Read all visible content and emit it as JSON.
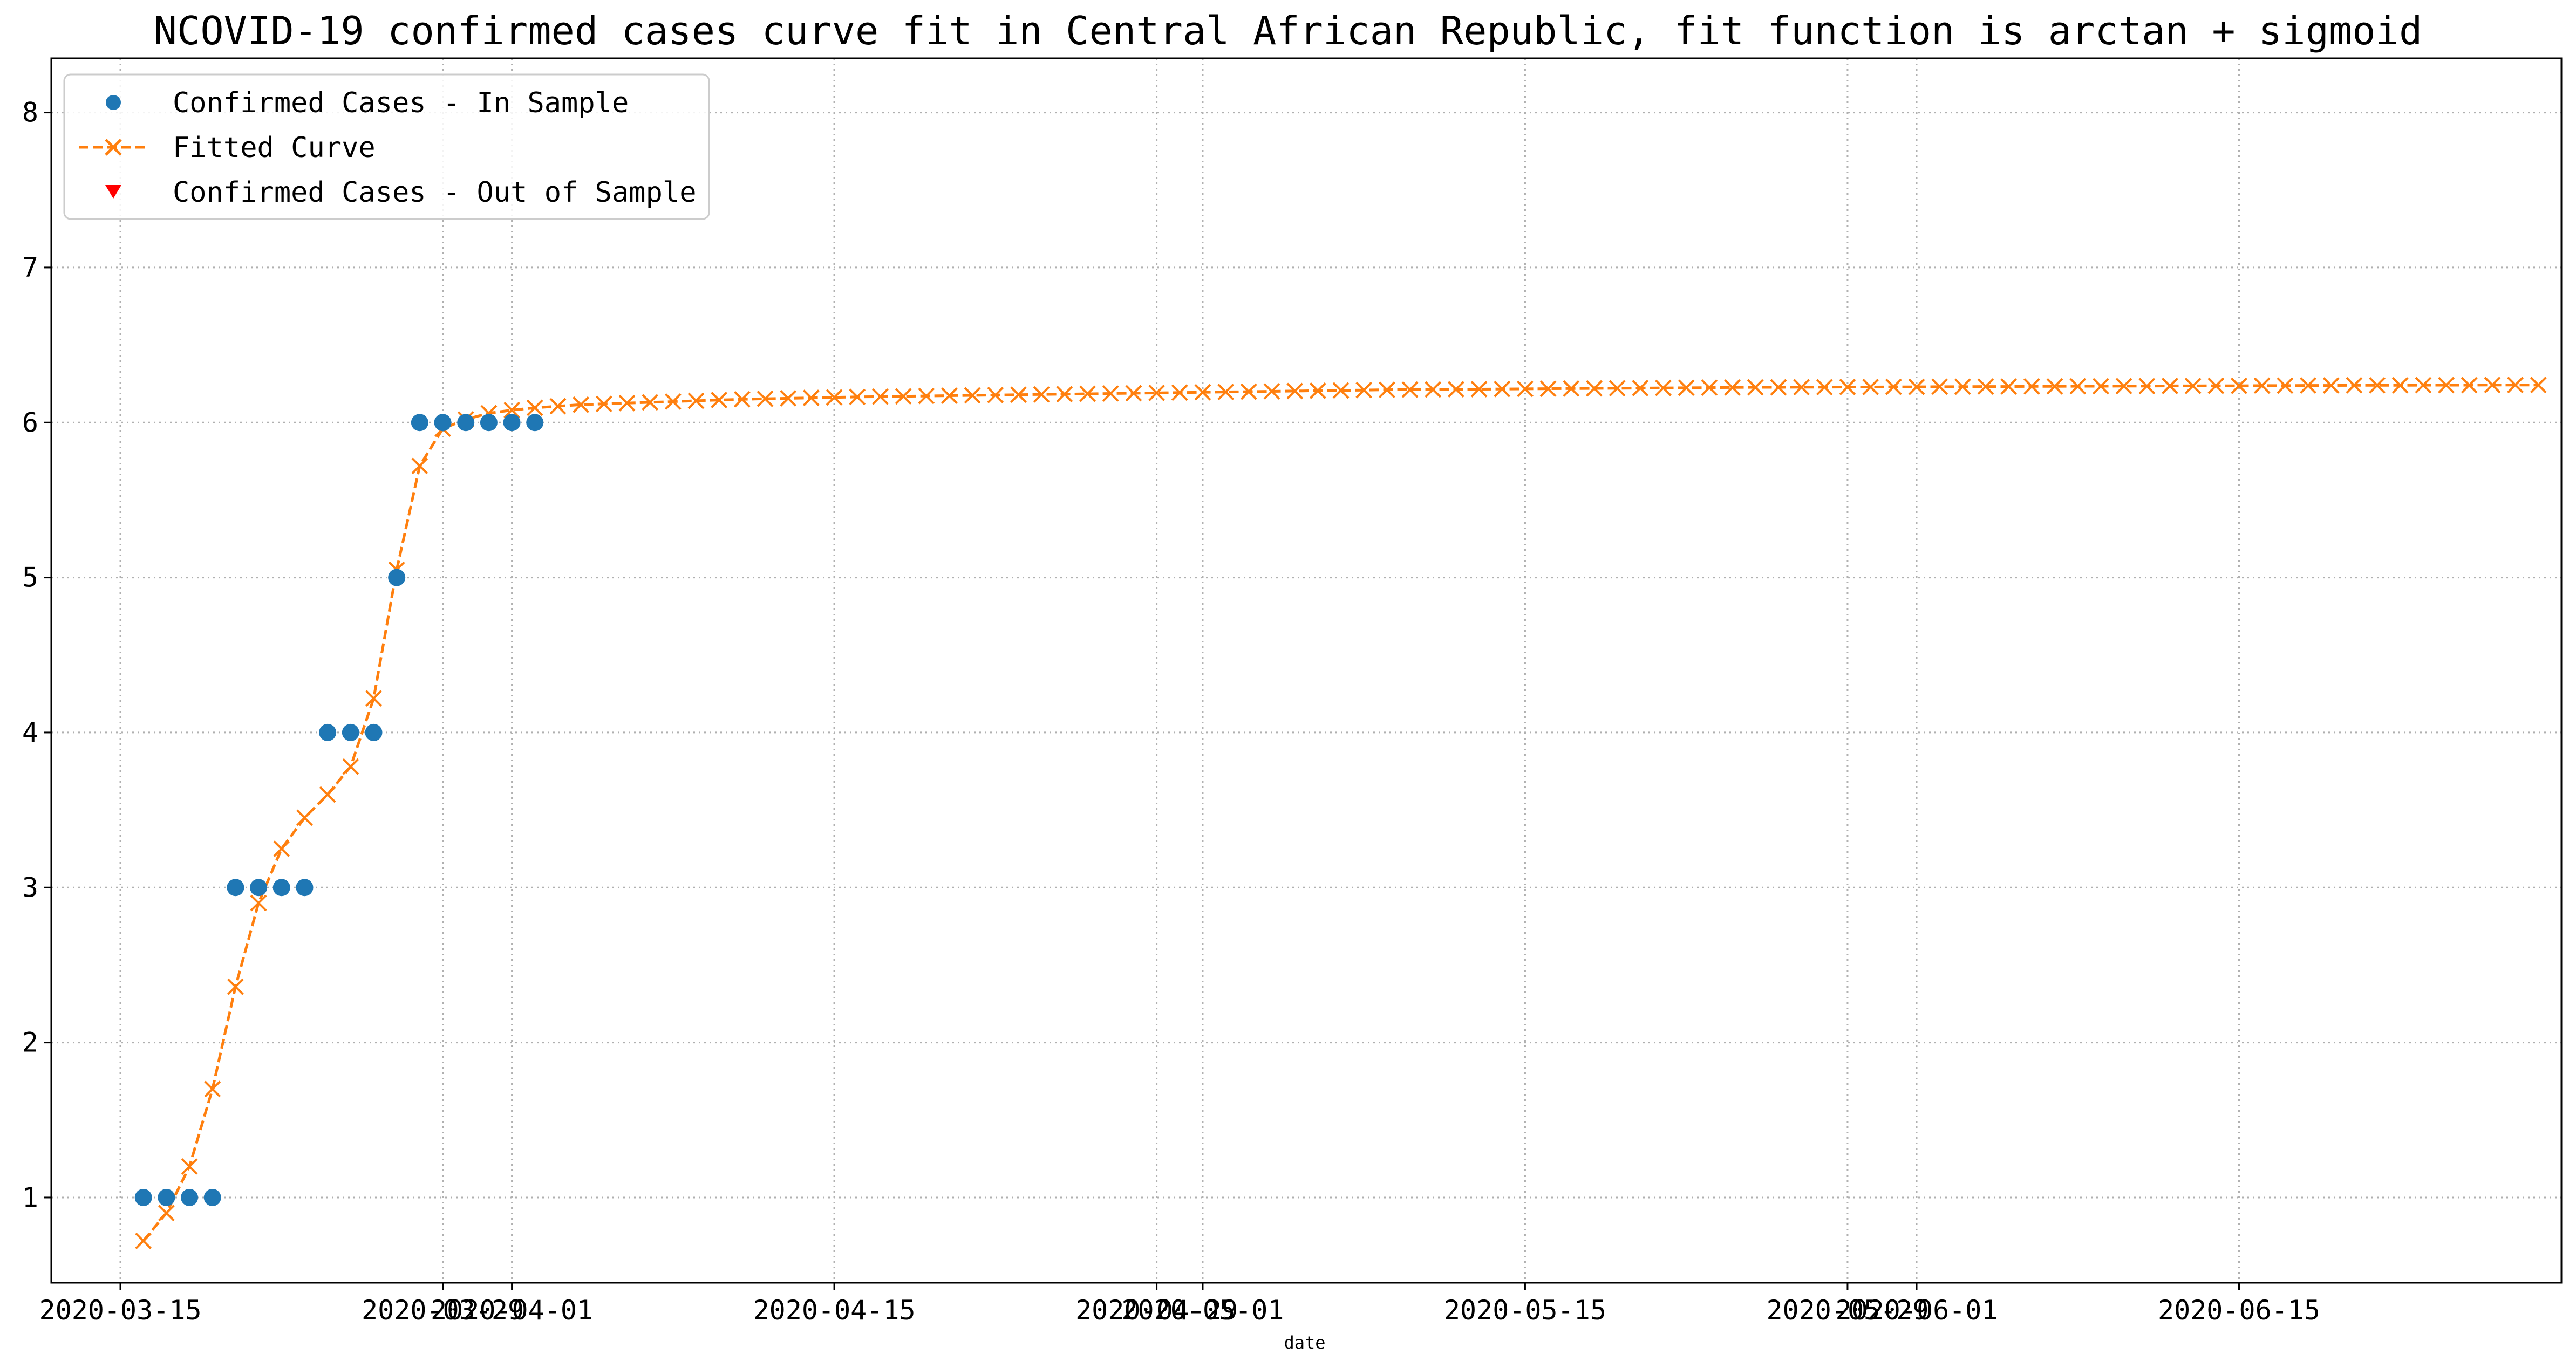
{
  "chart_data": {
    "type": "line",
    "title": "NCOVID-19 confirmed cases curve fit in Central African Republic, fit function is arctan + sigmoid",
    "xlabel": "date",
    "ylabel": "",
    "x_type": "date",
    "xlim": [
      "2020-03-12",
      "2020-06-29"
    ],
    "ylim": [
      0.45,
      8.35
    ],
    "grid": true,
    "legend_position": "top-left",
    "y_ticks": [
      1,
      2,
      3,
      4,
      5,
      6,
      7,
      8
    ],
    "x_ticks": [
      {
        "date": "2020-03-15",
        "label": "2020-03-15"
      },
      {
        "date": "2020-03-29",
        "label": "2020-03-29"
      },
      {
        "date": "2020-04-01",
        "label": "2020-04-01"
      },
      {
        "date": "2020-04-15",
        "label": "2020-04-15"
      },
      {
        "date": "2020-04-29",
        "label": "2020-04-29"
      },
      {
        "date": "2020-05-01",
        "label": "2020-05-01"
      },
      {
        "date": "2020-05-15",
        "label": "2020-05-15"
      },
      {
        "date": "2020-05-29",
        "label": "2020-05-29"
      },
      {
        "date": "2020-06-01",
        "label": "2020-06-01"
      },
      {
        "date": "2020-06-15",
        "label": "2020-06-15"
      }
    ],
    "series": [
      {
        "name": "Confirmed Cases - In Sample",
        "kind": "scatter",
        "marker": "circle",
        "color": "#1f77b4",
        "points": [
          {
            "x": "2020-03-16",
            "y": 1
          },
          {
            "x": "2020-03-17",
            "y": 1
          },
          {
            "x": "2020-03-18",
            "y": 1
          },
          {
            "x": "2020-03-19",
            "y": 1
          },
          {
            "x": "2020-03-20",
            "y": 3
          },
          {
            "x": "2020-03-21",
            "y": 3
          },
          {
            "x": "2020-03-22",
            "y": 3
          },
          {
            "x": "2020-03-23",
            "y": 3
          },
          {
            "x": "2020-03-24",
            "y": 4
          },
          {
            "x": "2020-03-25",
            "y": 4
          },
          {
            "x": "2020-03-26",
            "y": 4
          },
          {
            "x": "2020-03-27",
            "y": 5
          },
          {
            "x": "2020-03-28",
            "y": 6
          },
          {
            "x": "2020-03-29",
            "y": 6
          },
          {
            "x": "2020-03-30",
            "y": 6
          },
          {
            "x": "2020-03-31",
            "y": 6
          },
          {
            "x": "2020-04-01",
            "y": 6
          },
          {
            "x": "2020-04-02",
            "y": 6
          }
        ]
      },
      {
        "name": "Fitted Curve",
        "kind": "line",
        "marker": "x",
        "linestyle": "dashed",
        "color": "#ff7f0e",
        "x_start": "2020-03-16",
        "x_step_days": 1,
        "values": [
          0.72,
          0.9,
          1.2,
          1.7,
          2.36,
          2.9,
          3.25,
          3.45,
          3.6,
          3.78,
          4.22,
          5.05,
          5.72,
          5.96,
          6.02,
          6.06,
          6.08,
          6.095,
          6.105,
          6.115,
          6.12,
          6.125,
          6.13,
          6.135,
          6.14,
          6.145,
          6.15,
          6.153,
          6.156,
          6.159,
          6.162,
          6.165,
          6.167,
          6.169,
          6.171,
          6.173,
          6.175,
          6.177,
          6.179,
          6.181,
          6.183,
          6.185,
          6.187,
          6.189,
          6.191,
          6.193,
          6.195,
          6.197,
          6.199,
          6.201,
          6.203,
          6.205,
          6.207,
          6.209,
          6.211,
          6.212,
          6.213,
          6.214,
          6.215,
          6.216,
          6.217,
          6.218,
          6.219,
          6.22,
          6.221,
          6.222,
          6.223,
          6.224,
          6.225,
          6.226,
          6.227,
          6.227,
          6.228,
          6.228,
          6.229,
          6.229,
          6.23,
          6.23,
          6.231,
          6.231,
          6.232,
          6.232,
          6.233,
          6.233,
          6.234,
          6.234,
          6.235,
          6.235,
          6.236,
          6.236,
          6.237,
          6.237,
          6.238,
          6.238,
          6.239,
          6.239,
          6.24,
          6.24,
          6.24,
          6.241,
          6.241,
          6.241,
          6.242,
          6.242,
          6.242
        ]
      },
      {
        "name": "Confirmed Cases - Out of Sample",
        "kind": "scatter",
        "marker": "triangle-down",
        "color": "#ff0000",
        "points": []
      }
    ]
  }
}
